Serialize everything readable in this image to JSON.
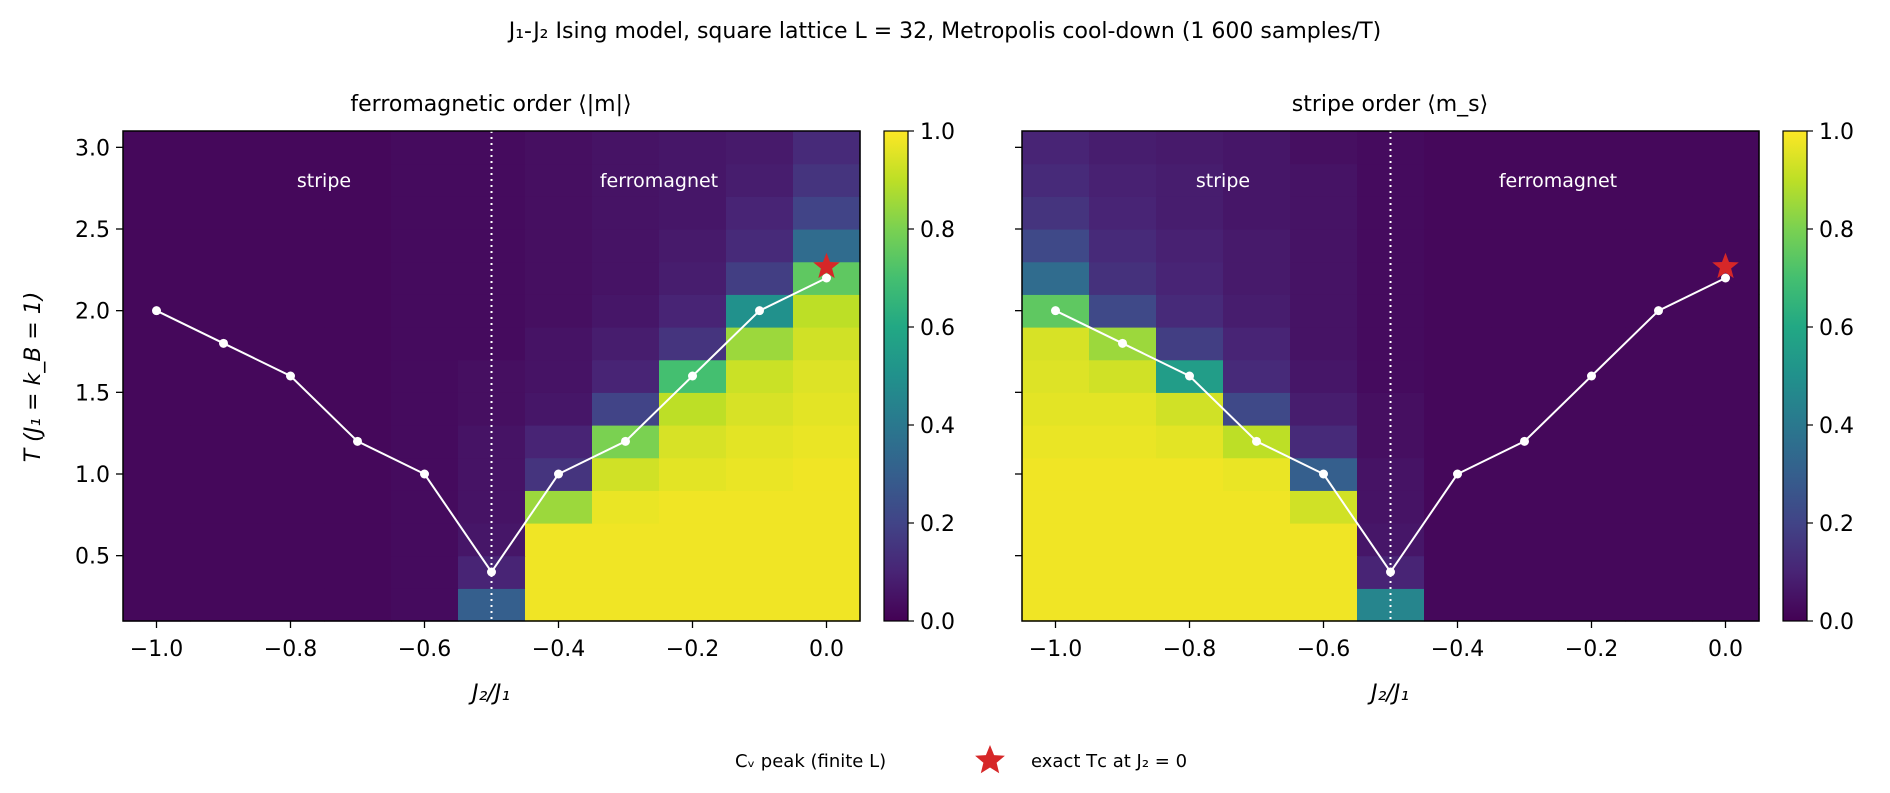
{
  "figure": {
    "suptitle": "J₁-J₂ Ising model, square lattice L = 32, Metropolis cool-down (1 600 samples/T)"
  },
  "legend": {
    "items": [
      {
        "label": "Cᵥ peak (finite L)",
        "marker": "white-line-with-dots"
      },
      {
        "label": "exact Tᴄ at J₂ = 0",
        "marker": "red-star"
      }
    ],
    "placement": "bottom-center"
  },
  "colors": {
    "viridis_dark": "#440154",
    "viridis_bright": "#fde725",
    "cv_line": "#ffffff",
    "star": "#d62728",
    "divider": "#ffffff"
  },
  "chart_data": [
    {
      "type": "heatmap",
      "title": "ferromagnetic order ⟨|m|⟩",
      "xlabel": "J₂/J₁",
      "ylabel": "T  (J₁ = k_B = 1)",
      "xlim": [
        -1.05,
        0.05
      ],
      "ylim": [
        0.1,
        3.1
      ],
      "x_ticks": [
        "−1.0",
        "−0.8",
        "−0.6",
        "−0.4",
        "−0.2",
        "0.0"
      ],
      "y_ticks": [
        "0.5",
        "1.0",
        "1.5",
        "2.0",
        "2.5",
        "3.0"
      ],
      "colorbar": {
        "min": 0.0,
        "max": 1.0,
        "ticks": [
          "0.0",
          "0.2",
          "0.4",
          "0.6",
          "0.8",
          "1.0"
        ],
        "colormap": "viridis"
      },
      "grid": false,
      "annotations": [
        {
          "text": "stripe",
          "x": -0.75,
          "y": 2.8
        },
        {
          "text": "ferromagnet",
          "x": -0.25,
          "y": 2.8
        }
      ],
      "divider_x": -0.5,
      "x": [
        -1.0,
        -0.9,
        -0.8,
        -0.7,
        -0.6,
        -0.5,
        -0.4,
        -0.3,
        -0.2,
        -0.1,
        0.0
      ],
      "T": [
        0.2,
        0.4,
        0.6,
        0.8,
        1.0,
        1.2,
        1.4,
        1.6,
        1.8,
        2.0,
        2.2,
        2.4,
        2.6,
        2.8,
        3.0
      ],
      "z": [
        [
          0.02,
          0.02,
          0.02,
          0.02,
          0.03,
          0.3,
          0.98,
          0.98,
          0.98,
          0.98,
          0.98
        ],
        [
          0.02,
          0.02,
          0.02,
          0.02,
          0.03,
          0.1,
          0.98,
          0.98,
          0.98,
          0.98,
          0.98
        ],
        [
          0.02,
          0.02,
          0.02,
          0.02,
          0.03,
          0.06,
          0.98,
          0.98,
          0.98,
          0.98,
          0.98
        ],
        [
          0.02,
          0.02,
          0.02,
          0.02,
          0.03,
          0.05,
          0.85,
          0.97,
          0.98,
          0.98,
          0.98
        ],
        [
          0.02,
          0.02,
          0.02,
          0.02,
          0.03,
          0.05,
          0.15,
          0.93,
          0.96,
          0.97,
          0.98
        ],
        [
          0.02,
          0.02,
          0.02,
          0.02,
          0.03,
          0.05,
          0.1,
          0.8,
          0.94,
          0.96,
          0.97
        ],
        [
          0.02,
          0.02,
          0.02,
          0.02,
          0.03,
          0.04,
          0.06,
          0.2,
          0.9,
          0.94,
          0.96
        ],
        [
          0.02,
          0.02,
          0.02,
          0.02,
          0.03,
          0.04,
          0.05,
          0.1,
          0.7,
          0.92,
          0.95
        ],
        [
          0.02,
          0.02,
          0.02,
          0.02,
          0.03,
          0.03,
          0.05,
          0.08,
          0.15,
          0.85,
          0.93
        ],
        [
          0.02,
          0.02,
          0.02,
          0.02,
          0.03,
          0.03,
          0.04,
          0.06,
          0.1,
          0.5,
          0.9
        ],
        [
          0.02,
          0.02,
          0.02,
          0.02,
          0.03,
          0.03,
          0.04,
          0.05,
          0.08,
          0.18,
          0.75
        ],
        [
          0.02,
          0.02,
          0.02,
          0.02,
          0.03,
          0.03,
          0.04,
          0.05,
          0.07,
          0.12,
          0.35
        ],
        [
          0.02,
          0.02,
          0.02,
          0.02,
          0.03,
          0.03,
          0.04,
          0.05,
          0.06,
          0.1,
          0.2
        ],
        [
          0.02,
          0.02,
          0.02,
          0.02,
          0.03,
          0.03,
          0.04,
          0.05,
          0.06,
          0.08,
          0.15
        ],
        [
          0.02,
          0.02,
          0.02,
          0.02,
          0.03,
          0.03,
          0.04,
          0.05,
          0.06,
          0.07,
          0.12
        ]
      ],
      "series": [
        {
          "name": "Cᵥ peak (finite L)",
          "x": [
            -1.0,
            -0.9,
            -0.8,
            -0.7,
            -0.6,
            -0.5,
            -0.4,
            -0.3,
            -0.2,
            -0.1,
            0.0
          ],
          "y": [
            2.0,
            1.8,
            1.6,
            1.2,
            1.0,
            0.4,
            1.0,
            1.2,
            1.6,
            2.0,
            2.2
          ]
        }
      ],
      "star": {
        "name": "exact Tᴄ at J₂ = 0",
        "x": 0.0,
        "y": 2.269
      }
    },
    {
      "type": "heatmap",
      "title": "stripe order ⟨m_s⟩",
      "xlabel": "J₂/J₁",
      "ylabel": "",
      "xlim": [
        -1.05,
        0.05
      ],
      "ylim": [
        0.1,
        3.1
      ],
      "x_ticks": [
        "−1.0",
        "−0.8",
        "−0.6",
        "−0.4",
        "−0.2",
        "0.0"
      ],
      "y_ticks": [],
      "colorbar": {
        "min": 0.0,
        "max": 1.0,
        "ticks": [
          "0.0",
          "0.2",
          "0.4",
          "0.6",
          "0.8",
          "1.0"
        ],
        "colormap": "viridis"
      },
      "grid": false,
      "annotations": [
        {
          "text": "stripe",
          "x": -0.75,
          "y": 2.8
        },
        {
          "text": "ferromagnet",
          "x": -0.25,
          "y": 2.8
        }
      ],
      "divider_x": -0.5,
      "x": [
        -1.0,
        -0.9,
        -0.8,
        -0.7,
        -0.6,
        -0.5,
        -0.4,
        -0.3,
        -0.2,
        -0.1,
        0.0
      ],
      "T": [
        0.2,
        0.4,
        0.6,
        0.8,
        1.0,
        1.2,
        1.4,
        1.6,
        1.8,
        2.0,
        2.2,
        2.4,
        2.6,
        2.8,
        3.0
      ],
      "z": [
        [
          0.98,
          0.98,
          0.98,
          0.98,
          0.98,
          0.45,
          0.02,
          0.02,
          0.02,
          0.02,
          0.02
        ],
        [
          0.98,
          0.98,
          0.98,
          0.98,
          0.98,
          0.1,
          0.02,
          0.02,
          0.02,
          0.02,
          0.02
        ],
        [
          0.98,
          0.98,
          0.98,
          0.98,
          0.98,
          0.06,
          0.02,
          0.02,
          0.02,
          0.02,
          0.02
        ],
        [
          0.98,
          0.98,
          0.98,
          0.98,
          0.93,
          0.05,
          0.02,
          0.02,
          0.02,
          0.02,
          0.02
        ],
        [
          0.98,
          0.98,
          0.98,
          0.97,
          0.3,
          0.05,
          0.02,
          0.02,
          0.02,
          0.02,
          0.02
        ],
        [
          0.97,
          0.97,
          0.96,
          0.9,
          0.12,
          0.04,
          0.02,
          0.02,
          0.02,
          0.02,
          0.02
        ],
        [
          0.96,
          0.96,
          0.93,
          0.22,
          0.08,
          0.04,
          0.02,
          0.02,
          0.02,
          0.02,
          0.02
        ],
        [
          0.95,
          0.93,
          0.55,
          0.12,
          0.06,
          0.03,
          0.02,
          0.02,
          0.02,
          0.02,
          0.02
        ],
        [
          0.94,
          0.85,
          0.18,
          0.1,
          0.05,
          0.03,
          0.02,
          0.02,
          0.02,
          0.02,
          0.02
        ],
        [
          0.75,
          0.22,
          0.12,
          0.08,
          0.05,
          0.03,
          0.02,
          0.02,
          0.02,
          0.02,
          0.02
        ],
        [
          0.35,
          0.14,
          0.1,
          0.07,
          0.05,
          0.03,
          0.02,
          0.02,
          0.02,
          0.02,
          0.02
        ],
        [
          0.22,
          0.12,
          0.09,
          0.07,
          0.05,
          0.03,
          0.02,
          0.02,
          0.02,
          0.02,
          0.02
        ],
        [
          0.15,
          0.1,
          0.08,
          0.06,
          0.05,
          0.03,
          0.02,
          0.02,
          0.02,
          0.02,
          0.02
        ],
        [
          0.12,
          0.09,
          0.08,
          0.06,
          0.05,
          0.03,
          0.02,
          0.02,
          0.02,
          0.02,
          0.02
        ],
        [
          0.1,
          0.08,
          0.07,
          0.06,
          0.04,
          0.03,
          0.02,
          0.02,
          0.02,
          0.02,
          0.02
        ]
      ],
      "series": [
        {
          "name": "Cᵥ peak (finite L)",
          "x": [
            -1.0,
            -0.9,
            -0.8,
            -0.7,
            -0.6,
            -0.5,
            -0.4,
            -0.3,
            -0.2,
            -0.1,
            0.0
          ],
          "y": [
            2.0,
            1.8,
            1.6,
            1.2,
            1.0,
            0.4,
            1.0,
            1.2,
            1.6,
            2.0,
            2.2
          ]
        }
      ],
      "star": {
        "name": "exact Tᴄ at J₂ = 0",
        "x": 0.0,
        "y": 2.269
      }
    }
  ]
}
